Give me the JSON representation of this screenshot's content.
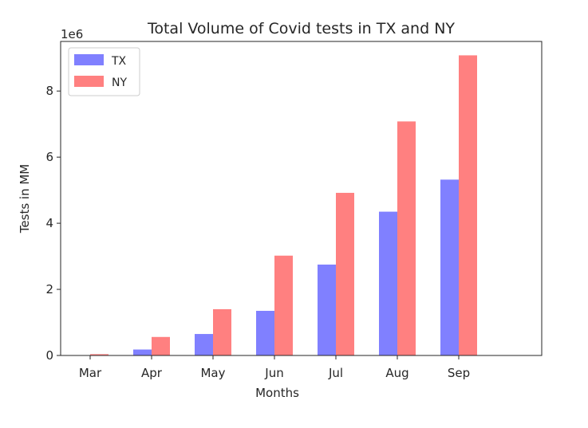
{
  "chart_data": {
    "type": "bar",
    "title": "Total Volume of Covid tests in TX and NY",
    "xlabel": "Months",
    "ylabel": "Tests in MM",
    "y_scale_label": "1e6",
    "categories": [
      "Mar",
      "Apr",
      "May",
      "Jun",
      "Jul",
      "Aug",
      "Sep"
    ],
    "series": [
      {
        "name": "TX",
        "color": "#8080ff",
        "values": [
          0.0,
          180000,
          650000,
          1350000,
          2750000,
          4350000,
          5320000
        ]
      },
      {
        "name": "NY",
        "color": "#ff8080",
        "values": [
          40000,
          560000,
          1400000,
          3020000,
          4920000,
          7080000,
          9080000
        ]
      }
    ],
    "ylim": [
      0,
      9500000
    ],
    "yticks": [
      0,
      2000000,
      4000000,
      6000000,
      8000000
    ],
    "ytick_labels": [
      "0",
      "2",
      "4",
      "6",
      "8"
    ],
    "grid": false,
    "legend_position": "top-left"
  }
}
